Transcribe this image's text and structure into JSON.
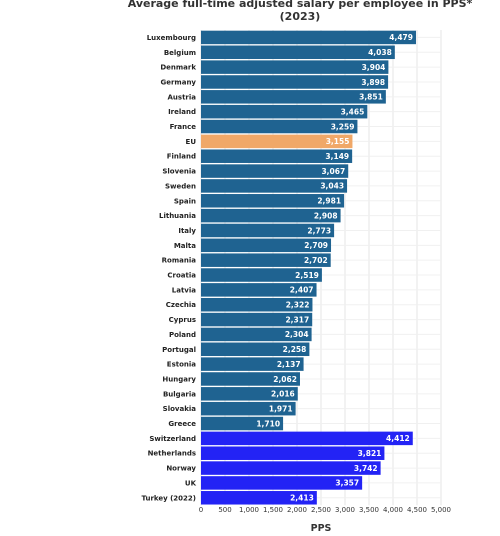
{
  "chart_data": {
    "type": "bar",
    "orientation": "horizontal",
    "title_line1": "Average full-time adjusted salary per employee in PPS*",
    "title_line2": "(2023)",
    "xlabel": "PPS",
    "ylabel": "",
    "xlim": [
      0,
      5000
    ],
    "xticks": [
      0,
      500,
      1000,
      1500,
      2000,
      2500,
      3000,
      3500,
      4000,
      4500,
      5000
    ],
    "xtick_labels": [
      "0",
      "500",
      "1,000",
      "1,500",
      "2,000",
      "2,500",
      "3,000",
      "3,500",
      "4,000",
      "4,500",
      "5,000"
    ],
    "grid": true,
    "colors": {
      "eu_member": "#1f6391",
      "eu_average": "#f0a868",
      "non_eu": "#2323f5"
    },
    "categories": [
      "Luxembourg",
      "Belgium",
      "Denmark",
      "Germany",
      "Austria",
      "Ireland",
      "France",
      "EU",
      "Finland",
      "Slovenia",
      "Sweden",
      "Spain",
      "Lithuania",
      "Italy",
      "Malta",
      "Romania",
      "Croatia",
      "Latvia",
      "Czechia",
      "Cyprus",
      "Poland",
      "Portugal",
      "Estonia",
      "Hungary",
      "Bulgaria",
      "Slovakia",
      "Greece",
      "Switzerland",
      "Netherlands",
      "Norway",
      "UK",
      "Turkey (2022)"
    ],
    "values": [
      4479,
      4038,
      3904,
      3898,
      3851,
      3465,
      3259,
      3155,
      3149,
      3067,
      3043,
      2981,
      2908,
      2773,
      2709,
      2702,
      2519,
      2407,
      2322,
      2317,
      2304,
      2258,
      2137,
      2062,
      2016,
      1971,
      1710,
      4412,
      3821,
      3742,
      3357,
      2413
    ],
    "value_labels": [
      "4,479",
      "4,038",
      "3,904",
      "3,898",
      "3,851",
      "3,465",
      "3,259",
      "3,155",
      "3,149",
      "3,067",
      "3,043",
      "2,981",
      "2,908",
      "2,773",
      "2,709",
      "2,702",
      "2,519",
      "2,407",
      "2,322",
      "2,317",
      "2,304",
      "2,258",
      "2,137",
      "2,062",
      "2,016",
      "1,971",
      "1,710",
      "4,412",
      "3,821",
      "3,742",
      "3,357",
      "2,413"
    ],
    "groups": [
      "eu_member",
      "eu_member",
      "eu_member",
      "eu_member",
      "eu_member",
      "eu_member",
      "eu_member",
      "eu_average",
      "eu_member",
      "eu_member",
      "eu_member",
      "eu_member",
      "eu_member",
      "eu_member",
      "eu_member",
      "eu_member",
      "eu_member",
      "eu_member",
      "eu_member",
      "eu_member",
      "eu_member",
      "eu_member",
      "eu_member",
      "eu_member",
      "eu_member",
      "eu_member",
      "eu_member",
      "non_eu",
      "non_eu",
      "non_eu",
      "non_eu",
      "non_eu"
    ]
  }
}
